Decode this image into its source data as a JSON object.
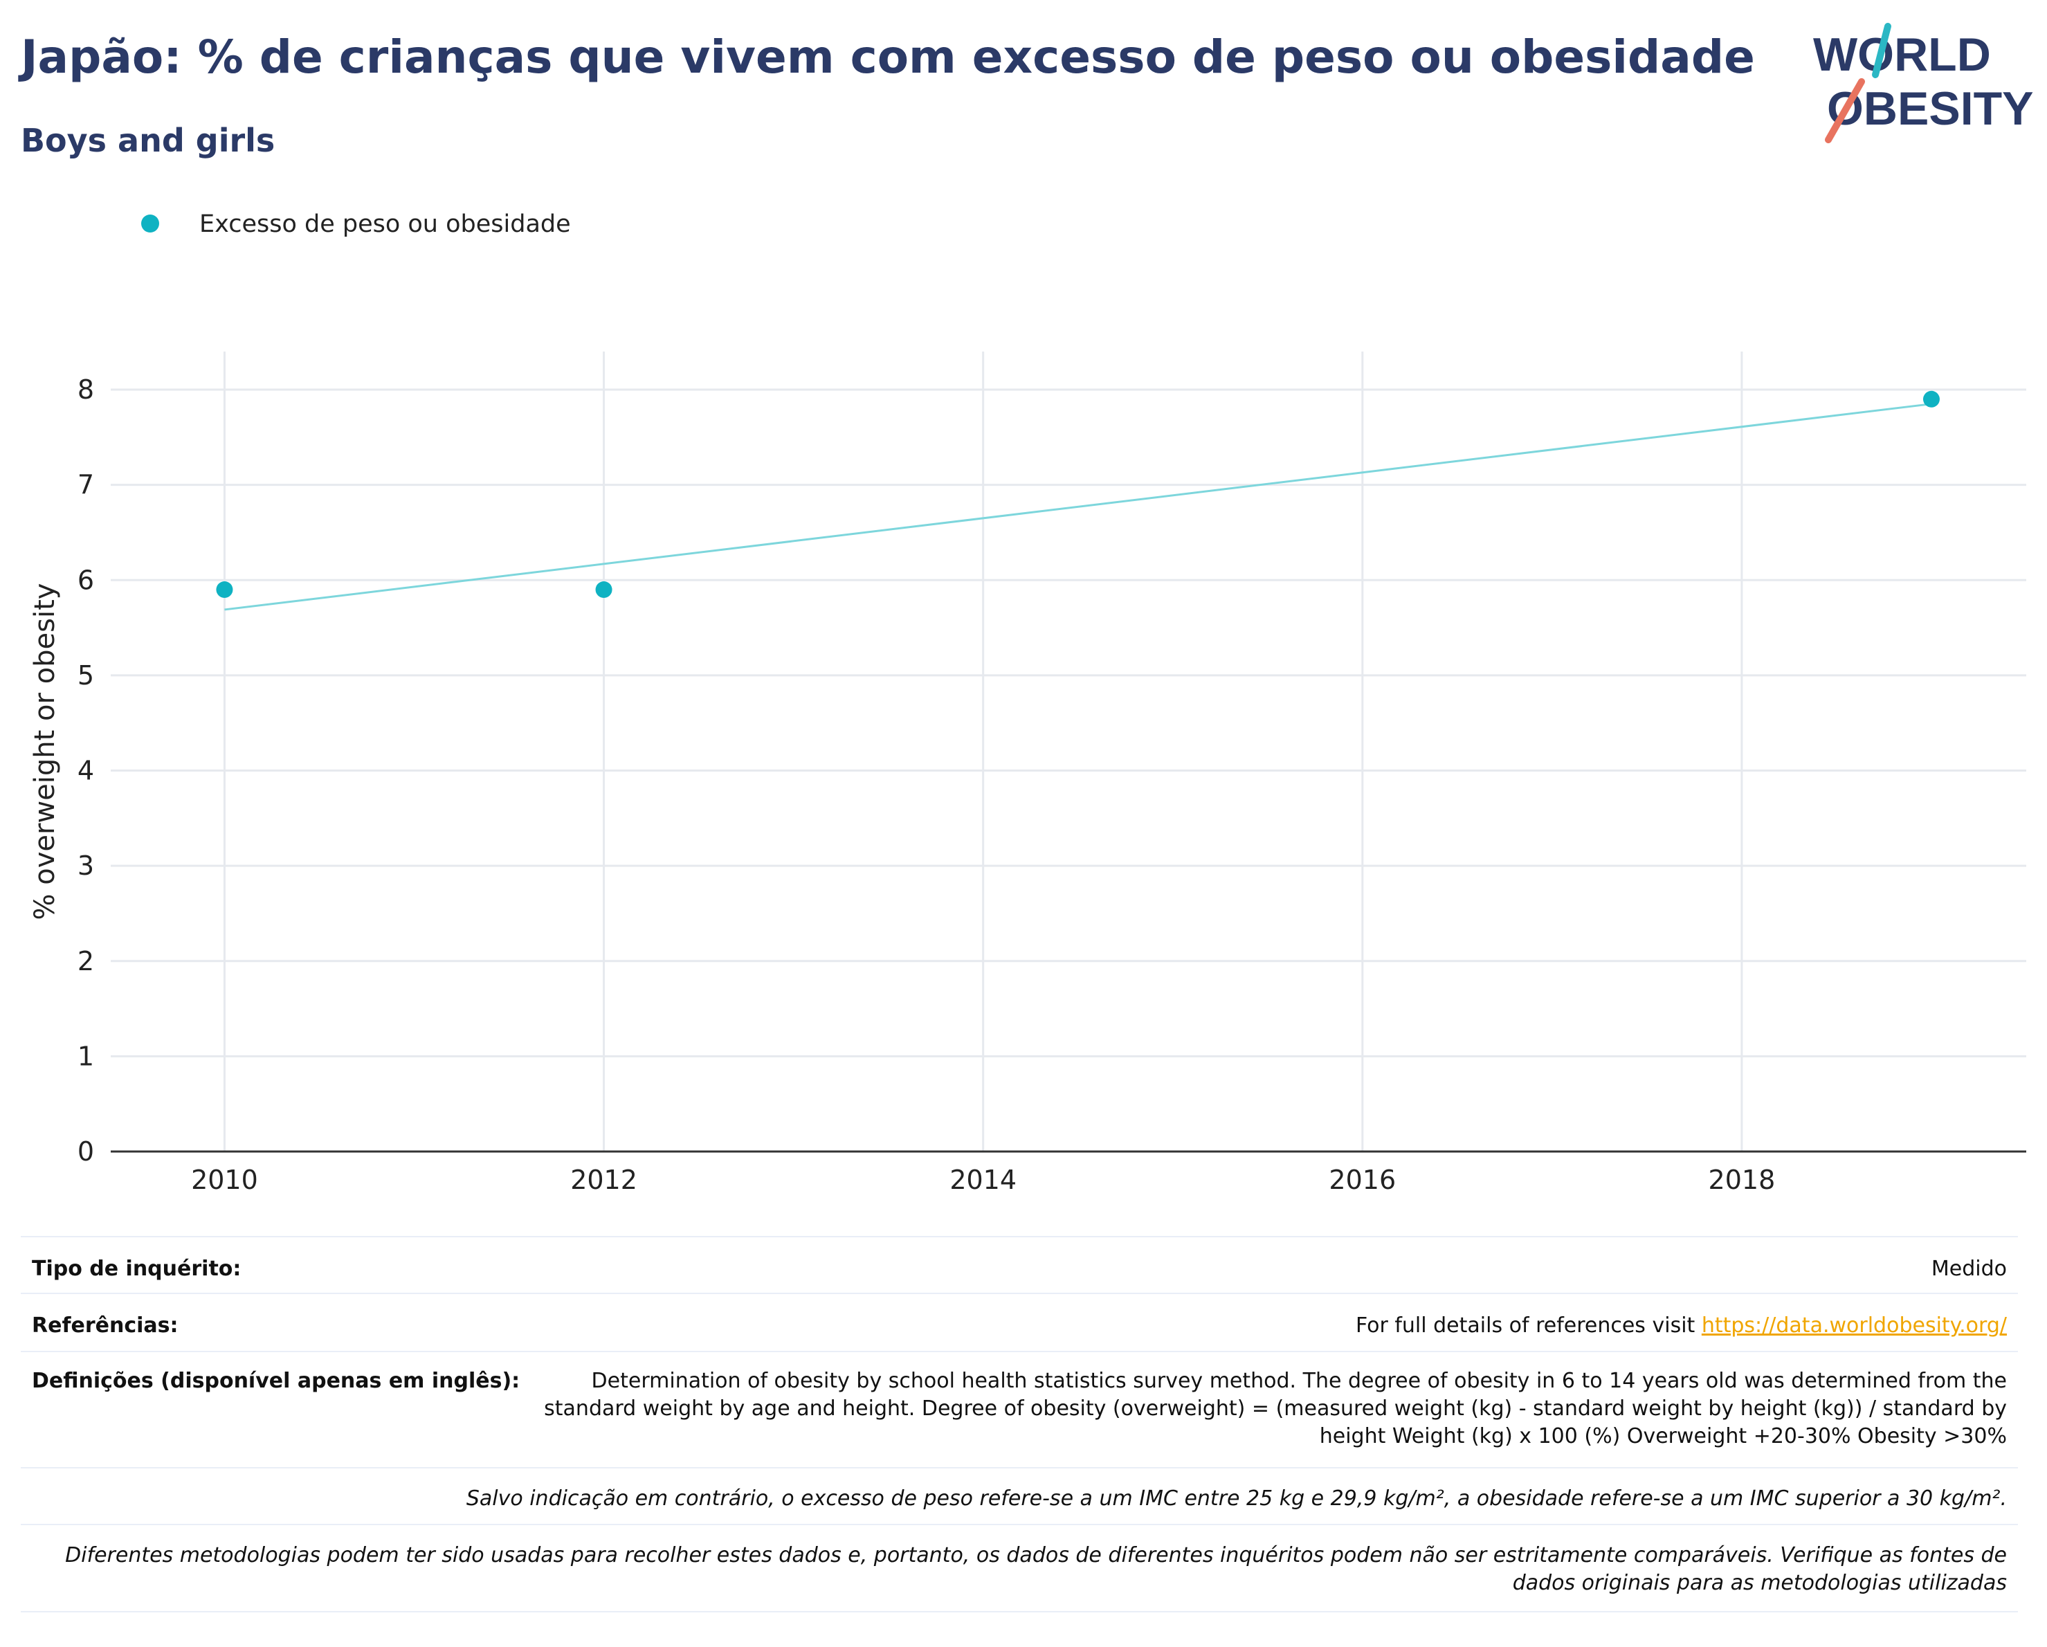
{
  "header": {
    "title": "Japão: % de crianças que vivem com excesso de peso ou obesidade",
    "subtitle": "Boys and girls"
  },
  "logo": {
    "line1": "WORLD",
    "line2": "OBESITY",
    "colors": {
      "navy": "#2b3a67",
      "teal": "#2bb7c4",
      "coral": "#e8735f"
    }
  },
  "legend": {
    "label": "Excesso de peso ou obesidade",
    "color": "#0fb2c2"
  },
  "chart_data": {
    "type": "scatter",
    "title": "Japão: % de crianças que vivem com excesso de peso ou obesidade",
    "subtitle": "Boys and girls",
    "xlabel": "",
    "ylabel": "% overweight or obesity",
    "xlim": [
      2009.4,
      2019.5
    ],
    "ylim": [
      0,
      8.4
    ],
    "x_ticks": [
      2010,
      2012,
      2014,
      2016,
      2018
    ],
    "y_ticks": [
      0,
      1,
      2,
      3,
      4,
      5,
      6,
      7,
      8
    ],
    "grid": true,
    "legend_position": "top-left",
    "series": [
      {
        "name": "Excesso de peso ou obesidade",
        "color": "#0fb2c2",
        "points": [
          {
            "x": 2010,
            "y": 5.9
          },
          {
            "x": 2012,
            "y": 5.9
          },
          {
            "x": 2019,
            "y": 7.9
          }
        ]
      }
    ],
    "trendline": {
      "color": "#7dd6dc",
      "points": [
        {
          "x": 2010,
          "y": 5.69
        },
        {
          "x": 2019,
          "y": 7.85
        }
      ]
    }
  },
  "info_table": {
    "survey_type_label": "Tipo de inquérito:",
    "survey_type_value": "Medido",
    "references_label": "Referências:",
    "references_prefix": "For full details of references visit ",
    "references_link": "https://data.worldobesity.org/",
    "definitions_label": "Definições (disponível apenas em inglês):",
    "definitions_value": "Determination of obesity by school health statistics survey method. The degree of obesity in 6 to 14 years old was determined from the standard weight by age and height. Degree of obesity (overweight) = (measured weight (kg) - standard weight by height (kg)) / standard by height Weight (kg) x 100 (%) Overweight +20-30% Obesity >30%",
    "bmi_note": "Salvo indicação em contrário, o excesso de peso refere-se a um IMC entre 25 kg e 29,9 kg/m², a obesidade refere-se a um IMC superior a 30 kg/m².",
    "methodology_note": "Diferentes metodologias podem ter sido usadas para recolher estes dados e, portanto, os dados de diferentes inquéritos podem não ser estritamente comparáveis. Verifique as fontes de dados originais para as metodologias utilizadas"
  }
}
